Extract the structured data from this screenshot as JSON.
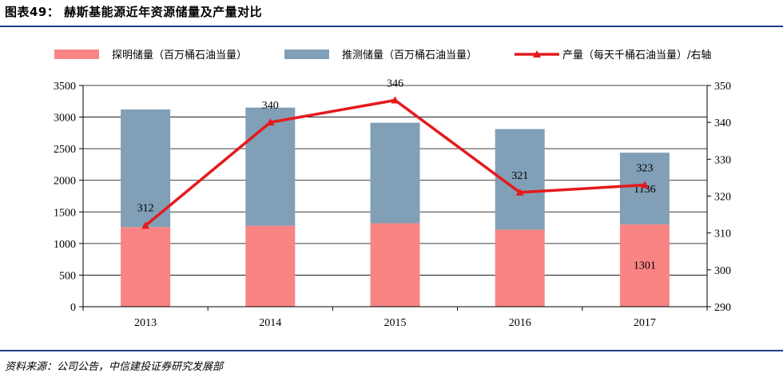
{
  "title": "图表49： 赫斯基能源近年资源储量及产量对比",
  "source": "资料来源：公司公告，中信建投证券研究发展部",
  "colors": {
    "proven": "#f98484",
    "estimated": "#819fb6",
    "production": "#e41a1c",
    "rule": "#1f3c88"
  },
  "chart_data": {
    "type": "bar",
    "stacked": true,
    "categories": [
      "2013",
      "2014",
      "2015",
      "2016",
      "2017"
    ],
    "series": [
      {
        "name": "探明储量（百万桶石油当量）",
        "type": "bar",
        "axis": "left",
        "values": [
          1260,
          1280,
          1320,
          1220,
          1301
        ]
      },
      {
        "name": "推测储量（百万桶石油当量）",
        "type": "bar",
        "axis": "left",
        "values": [
          1860,
          1870,
          1590,
          1590,
          1136
        ]
      },
      {
        "name": "产量（每天千桶石油当量）/右轴",
        "type": "line",
        "axis": "right",
        "values": [
          312,
          340,
          346,
          321,
          323
        ]
      }
    ],
    "bar_labels": [
      {
        "category": "2017",
        "series": 0,
        "text": "1301"
      },
      {
        "category": "2017",
        "series": 1,
        "text": "1136"
      }
    ],
    "line_labels": [
      "312",
      "340",
      "346",
      "321",
      "323"
    ],
    "y_left": {
      "lim": [
        0,
        3500
      ],
      "ticks": [
        "0",
        "500",
        "1000",
        "1500",
        "2000",
        "2500",
        "3000",
        "3500"
      ]
    },
    "y_right": {
      "lim": [
        290,
        350
      ],
      "ticks": [
        "290",
        "300",
        "310",
        "320",
        "330",
        "340",
        "350"
      ]
    },
    "grid": true,
    "legend": "top"
  }
}
